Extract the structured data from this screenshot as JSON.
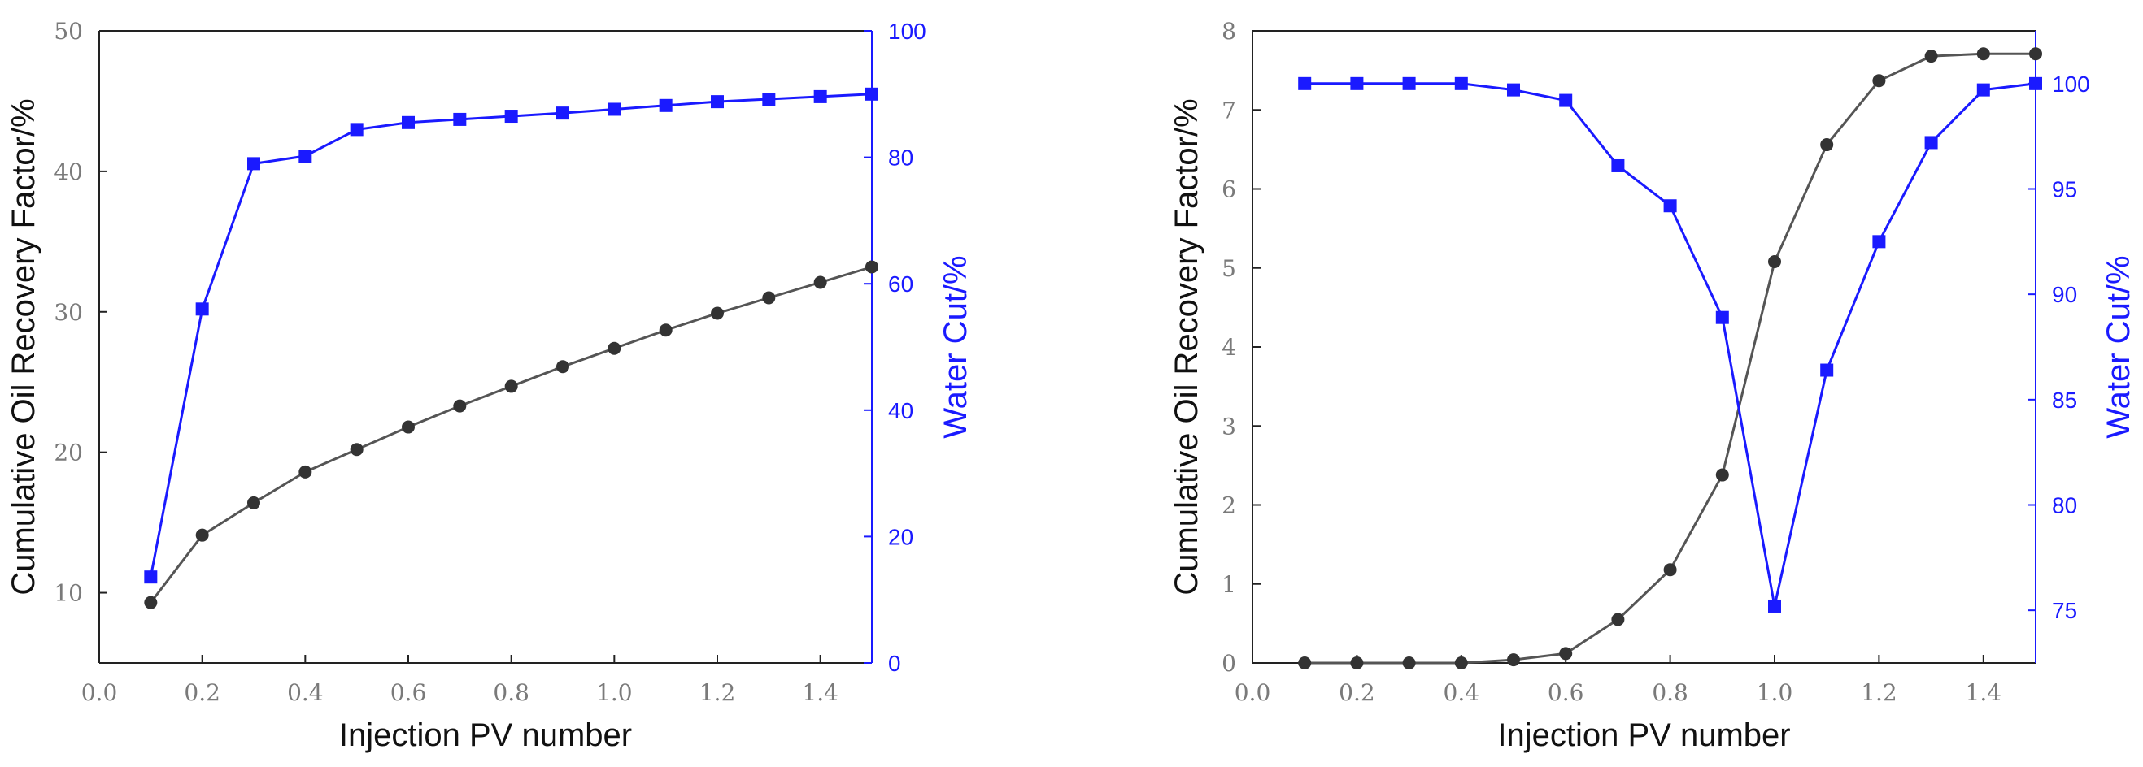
{
  "chart_data": [
    {
      "type": "line",
      "xlabel": "Injection PV number",
      "ylabel": "Cumulative Oil Recovery Factor/%",
      "y2label": "Water Cut/%",
      "xlim": [
        0.0,
        1.5
      ],
      "ylim": [
        5,
        50
      ],
      "y2lim": [
        0,
        100
      ],
      "x_ticks": [
        "0.0",
        "0.2",
        "0.4",
        "0.6",
        "0.8",
        "1.0",
        "1.2",
        "1.4"
      ],
      "y_ticks": [
        "10",
        "20",
        "30",
        "40",
        "50"
      ],
      "y2_ticks": [
        "0",
        "20",
        "40",
        "60",
        "80",
        "100"
      ],
      "grid": false,
      "series": [
        {
          "axis": "left",
          "color": "#333333",
          "marker": "circle",
          "x": [
            0.1,
            0.2,
            0.3,
            0.4,
            0.5,
            0.6,
            0.7,
            0.8,
            0.9,
            1.0,
            1.1,
            1.2,
            1.3,
            1.4,
            1.5
          ],
          "values": [
            9.3,
            14.1,
            16.4,
            18.6,
            20.2,
            21.8,
            23.3,
            24.7,
            26.1,
            27.4,
            28.7,
            29.9,
            31.0,
            32.1,
            33.2
          ]
        },
        {
          "axis": "right",
          "color": "#1a1aff",
          "marker": "square",
          "x": [
            0.1,
            0.2,
            0.3,
            0.4,
            0.5,
            0.6,
            0.7,
            0.8,
            0.9,
            1.0,
            1.1,
            1.2,
            1.3,
            1.4,
            1.5
          ],
          "values": [
            13.6,
            56.0,
            79.0,
            80.2,
            84.4,
            85.5,
            86.0,
            86.5,
            87.0,
            87.6,
            88.2,
            88.8,
            89.2,
            89.6,
            90.0
          ]
        }
      ]
    },
    {
      "type": "line",
      "xlabel": "Injection PV number",
      "ylabel": "Cumulative Oil Recovery Factor/%",
      "y2label": "Water Cut/%",
      "xlim": [
        0.0,
        1.5
      ],
      "ylim": [
        0,
        8
      ],
      "y2lim": [
        72.5,
        102.5
      ],
      "x_ticks": [
        "0.0",
        "0.2",
        "0.4",
        "0.6",
        "0.8",
        "1.0",
        "1.2",
        "1.4"
      ],
      "y_ticks": [
        "0",
        "1",
        "2",
        "3",
        "4",
        "5",
        "6",
        "7",
        "8"
      ],
      "y2_ticks": [
        "75",
        "80",
        "85",
        "90",
        "95",
        "100"
      ],
      "grid": false,
      "series": [
        {
          "axis": "left",
          "color": "#333333",
          "marker": "circle",
          "x": [
            0.1,
            0.2,
            0.3,
            0.4,
            0.5,
            0.6,
            0.7,
            0.8,
            0.9,
            1.0,
            1.1,
            1.2,
            1.3,
            1.4,
            1.5
          ],
          "values": [
            0.0,
            0.0,
            0.0,
            0.0,
            0.04,
            0.12,
            0.55,
            1.18,
            2.38,
            5.08,
            6.56,
            7.37,
            7.68,
            7.71,
            7.71
          ]
        },
        {
          "axis": "right",
          "color": "#1a1aff",
          "marker": "square",
          "x": [
            0.1,
            0.2,
            0.3,
            0.4,
            0.5,
            0.6,
            0.7,
            0.8,
            0.9,
            1.0,
            1.1,
            1.2,
            1.3,
            1.4,
            1.5
          ],
          "values": [
            100.0,
            100.0,
            100.0,
            100.0,
            99.7,
            99.2,
            96.1,
            94.2,
            88.9,
            75.2,
            86.4,
            92.5,
            97.2,
            99.7,
            100.0
          ]
        }
      ]
    }
  ]
}
